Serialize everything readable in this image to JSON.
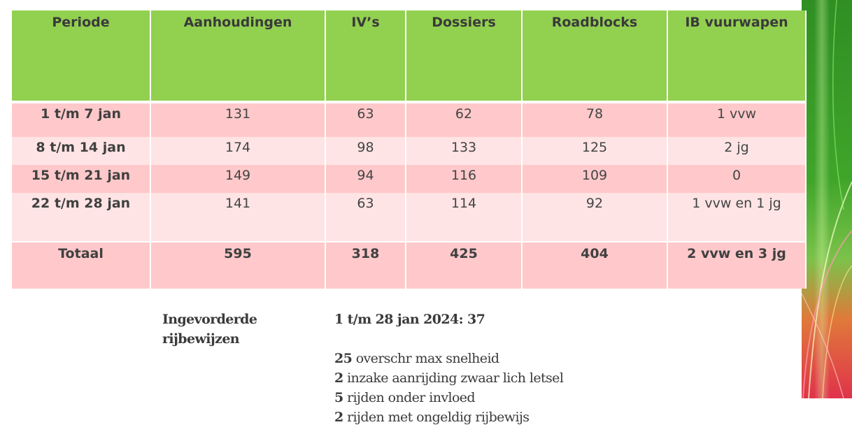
{
  "table": {
    "headers": [
      "Periode",
      "Aanhoudingen",
      "IV’s",
      "Dossiers",
      "Roadblocks",
      "IB vuurwapen"
    ],
    "rows": [
      [
        "1 t/m 7 jan",
        "131",
        "63",
        "62",
        "78",
        "1 vvw"
      ],
      [
        "8 t/m 14 jan",
        "174",
        "98",
        "133",
        "125",
        "2 jg"
      ],
      [
        "15 t/m 21 jan",
        "149",
        "94",
        "116",
        "109",
        "0"
      ],
      [
        "22 t/m 28 jan",
        "141",
        "63",
        "114",
        "92",
        "1 vvw en 1 jg"
      ],
      [
        "Totaal",
        "595",
        "318",
        "425",
        "404",
        "2 vvw en 3 jg"
      ]
    ]
  },
  "notes": {
    "lead": "Ingevorderde rijbewijzen",
    "date": "1 t/m 28 jan 2024: 37",
    "items": [
      {
        "count": "25",
        "text": "overschr max snelheid"
      },
      {
        "count": "2",
        "text": "inzake aanrijding zwaar lich letsel"
      },
      {
        "count": "5",
        "text": "rijden onder invloed"
      },
      {
        "count": "2",
        "text": "rijden met ongeldig rijbewijs"
      }
    ]
  },
  "colors": {
    "header_green": "#92d050",
    "row_dark_pink": "#ffc9cb",
    "row_light_pink": "#ffe4e5"
  }
}
